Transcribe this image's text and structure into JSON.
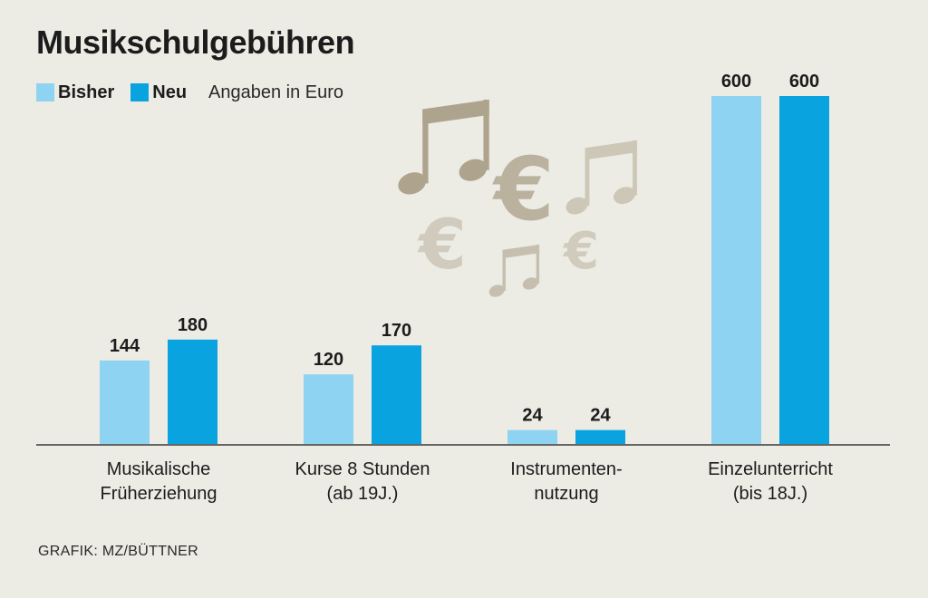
{
  "title": "Musikschulgebühren",
  "unit_note": "Angaben in Euro",
  "credit": "GRAFIK: MZ/BÜTTNER",
  "colors": {
    "bisher": "#8ed4f2",
    "neu": "#09a3df",
    "background": "#ecebe4",
    "decor": "#a89c84"
  },
  "decor_icons": [
    "music-note-icon",
    "euro-icon"
  ],
  "chart_data": {
    "type": "bar",
    "title": "Musikschulgebühren",
    "categories": [
      [
        "Musikalische",
        "Früherziehung"
      ],
      [
        "Kurse 8 Stunden",
        "(ab 19J.)"
      ],
      [
        "Instrumenten-",
        "nutzung"
      ],
      [
        "Einzelunterricht",
        "(bis 18J.)"
      ]
    ],
    "series": [
      {
        "name": "Bisher",
        "values": [
          144,
          120,
          24,
          600
        ]
      },
      {
        "name": "Neu",
        "values": [
          180,
          170,
          24,
          600
        ]
      }
    ],
    "ylim": [
      0,
      600
    ],
    "ylabel": "",
    "xlabel": "",
    "grid": false,
    "legend": "top-left"
  }
}
